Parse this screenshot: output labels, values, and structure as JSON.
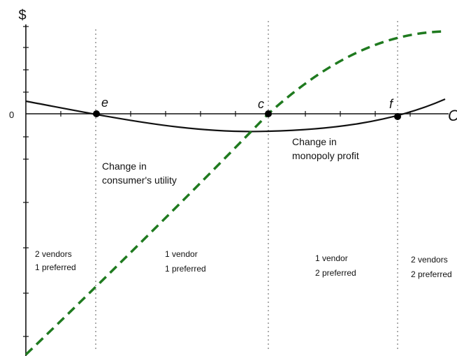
{
  "axes": {
    "y_label": "$",
    "zero_label": "0",
    "x_label": "C"
  },
  "points": {
    "e": "e",
    "c": "c",
    "f": "f"
  },
  "curve_labels": {
    "consumer": [
      "Change in",
      "consumer's utility"
    ],
    "monopoly": [
      "Change in",
      "monopoly profit"
    ]
  },
  "regions": [
    [
      "2 vendors",
      "1 preferred"
    ],
    [
      "1 vendor",
      "1 preferred"
    ],
    [
      "1 vendor",
      "2 preferred"
    ],
    [
      "2 vendors",
      "2 preferred"
    ]
  ],
  "colors": {
    "consumer_curve": "#1f7a1f",
    "monopoly_curve": "#111111"
  }
}
